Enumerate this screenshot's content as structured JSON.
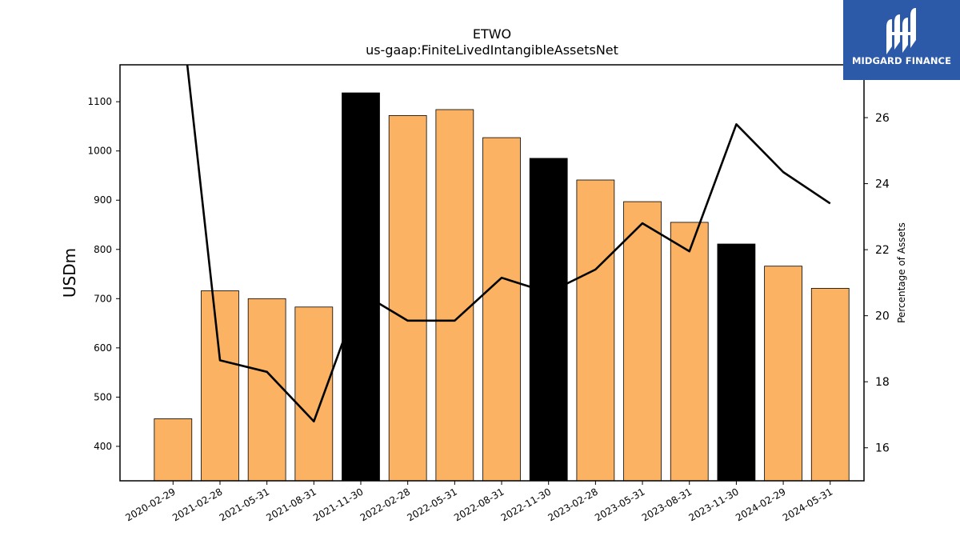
{
  "chart_data": {
    "type": "bar",
    "title": "ETWO",
    "subtitle": "us-gaap:FiniteLivedIntangibleAssetsNet",
    "ylabel": "USDm",
    "y2label": "Percentage of Assets",
    "categories": [
      "2020-02-29",
      "2021-02-28",
      "2021-05-31",
      "2021-08-31",
      "2021-11-30",
      "2022-02-28",
      "2022-05-31",
      "2022-08-31",
      "2022-11-30",
      "2023-02-28",
      "2023-05-31",
      "2023-08-31",
      "2023-11-30",
      "2024-02-29",
      "2024-05-31"
    ],
    "series": [
      {
        "type": "bar",
        "values": [
          456,
          716,
          700,
          683,
          1118,
          1072,
          1084,
          1027,
          985,
          941,
          897,
          855,
          811,
          766,
          721
        ],
        "colors": [
          "#fbb262",
          "#fbb262",
          "#fbb262",
          "#fbb262",
          "#000000",
          "#fbb262",
          "#fbb262",
          "#fbb262",
          "#000000",
          "#fbb262",
          "#fbb262",
          "#fbb262",
          "#000000",
          "#fbb262",
          "#fbb262"
        ]
      },
      {
        "type": "line",
        "axis": "right",
        "values": [
          31.5,
          18.65,
          18.3,
          16.8,
          20.7,
          19.85,
          19.85,
          21.15,
          20.7,
          21.4,
          22.8,
          21.95,
          25.8,
          24.35,
          23.4
        ],
        "color": "#000000"
      }
    ],
    "ylim": [
      330,
      1175
    ],
    "yticks": [
      400,
      500,
      600,
      700,
      800,
      900,
      1000,
      1100
    ],
    "y2lim": [
      15.0,
      27.6
    ],
    "y2ticks": [
      16,
      18,
      20,
      22,
      24,
      26
    ],
    "legend": "none",
    "grid": false
  },
  "logo": {
    "text": "MIDGARD FINANCE",
    "background": "#2d5aa8"
  }
}
